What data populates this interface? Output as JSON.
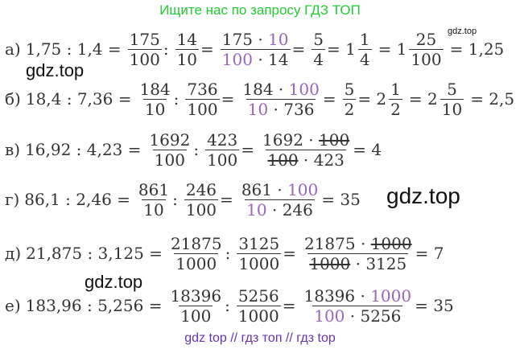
{
  "banner": "Ищите нас по запросу ГДЗ ТОП",
  "watermarks": {
    "small": "gdz.top",
    "w1": "gdz.top",
    "w2": "gdz.top",
    "w3": "gdz.top"
  },
  "footer": "gdz top  //  гдз топ  //  гдз top",
  "lines": {
    "a": {
      "label": "а)",
      "expr": "1,75 : 1,4 =",
      "f1n": "175",
      "f1d": "100",
      "op1": ":",
      "f2n": "14",
      "f2d": "10",
      "eq1": "=",
      "f3n_a": "175 · ",
      "f3n_b": "10",
      "f3d_a": "100",
      "f3d_b": " · 14",
      "eq2": "=",
      "f4n": "5",
      "f4d": "4",
      "eq3": "= 1",
      "m1n": "1",
      "m1d": "4",
      "eq4": "= 1",
      "m2n": "25",
      "m2d": "100",
      "result": "= 1,25"
    },
    "b": {
      "label": "б)",
      "expr": "18,4 : 7,36 =",
      "f1n": "184",
      "f1d": "10",
      "op1": ":",
      "f2n": "736",
      "f2d": "100",
      "eq1": "=",
      "f3n_a": "184 · ",
      "f3n_b": "100",
      "f3d_a": "10",
      "f3d_b": " · 736",
      "eq2": "=",
      "f4n": "5",
      "f4d": "2",
      "eq3": "= 2",
      "m1n": "1",
      "m1d": "2",
      "eq4": "= 2",
      "m2n": "5",
      "m2d": "10",
      "result": "= 2,5"
    },
    "v": {
      "label": "в)",
      "expr": "16,92 : 4,23 =",
      "f1n": "1692",
      "f1d": "100",
      "op1": ":",
      "f2n": "423",
      "f2d": "100",
      "eq1": "=",
      "f3n_a": "1692 · ",
      "f3n_b": "100",
      "f3d_a": "100",
      "f3d_b": " · 423",
      "result": "= 4"
    },
    "g": {
      "label": "г)",
      "expr": "86,1 : 2,46 =",
      "f1n": "861",
      "f1d": "10",
      "op1": ":",
      "f2n": "246",
      "f2d": "100",
      "eq1": "=",
      "f3n_a": "861 · ",
      "f3n_b": "100",
      "f3d_a": "10",
      "f3d_b": " · 246",
      "result": "= 35"
    },
    "d": {
      "label": "д)",
      "expr": "21,875 : 3,125 =",
      "f1n": "21875",
      "f1d": "1000",
      "op1": ":",
      "f2n": "3125",
      "f2d": "1000",
      "eq1": "=",
      "f3n_a": "21875 · ",
      "f3n_b": "1000",
      "f3d_a": "1000",
      "f3d_b": " · 3125",
      "result": "= 7"
    },
    "e": {
      "label": "е)",
      "expr": "183,96 : 5,256 =",
      "f1n": "18396",
      "f1d": "100",
      "op1": ":",
      "f2n": "5256",
      "f2d": "1000",
      "eq1": "=",
      "f3n_a": "18396 · ",
      "f3n_b": "1000",
      "f3d_a": "100",
      "f3d_b": " · 5256",
      "result": "= 35"
    }
  },
  "colors": {
    "banner": "#22cc33",
    "accent": "#9966bb",
    "text": "#333333",
    "footer": "#6633aa"
  }
}
